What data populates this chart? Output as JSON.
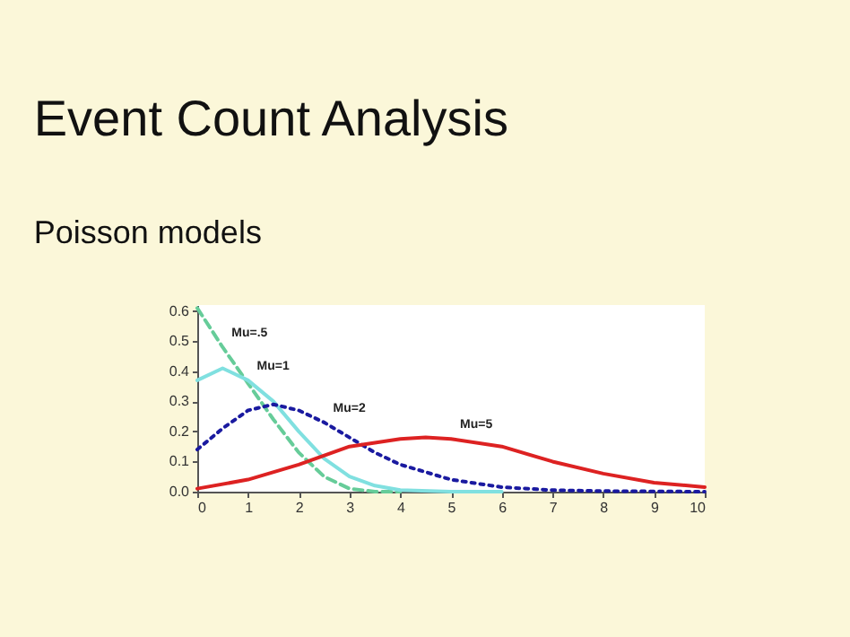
{
  "chart_data": {
    "type": "line",
    "title": "Event Count Analysis",
    "subtitle": "Poisson models",
    "xlim": [
      0,
      10
    ],
    "xticks": [
      0,
      1,
      2,
      3,
      4,
      5,
      6,
      7,
      8,
      9,
      10
    ],
    "ylim": [
      0,
      0.62
    ],
    "yticks": [
      {
        "value": 0,
        "label": "0.0"
      },
      {
        "value": 0.1,
        "label": "0.1"
      },
      {
        "value": 0.2,
        "label": "0.2"
      },
      {
        "value": 0.3,
        "label": "0.3"
      },
      {
        "value": 0.4,
        "label": "0.4"
      },
      {
        "value": 0.5,
        "label": "0.5"
      },
      {
        "value": 0.6,
        "label": "0.6"
      }
    ],
    "grid": false,
    "series": [
      {
        "color": "#66cc99",
        "line_style": "dashed",
        "x": [
          0,
          0.5,
          1,
          1.5,
          2,
          2.5,
          3,
          3.5,
          4
        ],
        "values": [
          0.61,
          0.48,
          0.36,
          0.24,
          0.13,
          0.05,
          0.01,
          0,
          0
        ]
      },
      {
        "color": "#80e0e0",
        "line_style": "solid",
        "x": [
          0,
          0.5,
          1,
          1.5,
          2,
          2.5,
          3,
          3.5,
          4,
          5,
          6
        ],
        "values": [
          0.37,
          0.41,
          0.37,
          0.3,
          0.2,
          0.11,
          0.05,
          0.02,
          0.005,
          0,
          0
        ]
      },
      {
        "color": "#1a1aa0",
        "line_style": "dotted",
        "x": [
          0,
          0.5,
          1,
          1.5,
          2,
          2.5,
          3,
          3.5,
          4,
          5,
          6,
          7,
          8,
          10
        ],
        "values": [
          0.14,
          0.21,
          0.27,
          0.29,
          0.27,
          0.23,
          0.18,
          0.13,
          0.09,
          0.04,
          0.015,
          0.005,
          0.002,
          0
        ]
      },
      {
        "color": "#dd2222",
        "line_style": "solid",
        "x": [
          0,
          1,
          2,
          3,
          4,
          4.5,
          5,
          6,
          7,
          8,
          9,
          10
        ],
        "values": [
          0.01,
          0.04,
          0.09,
          0.15,
          0.175,
          0.18,
          0.175,
          0.15,
          0.1,
          0.06,
          0.03,
          0.015
        ]
      }
    ],
    "annotations": [
      {
        "text": "Mu=.5",
        "x": 0.5,
        "y": 0.48
      },
      {
        "text": "Mu=1",
        "x": 1,
        "y": 0.37
      },
      {
        "text": "Mu=2",
        "x": 2.5,
        "y": 0.23
      },
      {
        "text": "Mu=5",
        "x": 5,
        "y": 0.175
      }
    ]
  }
}
